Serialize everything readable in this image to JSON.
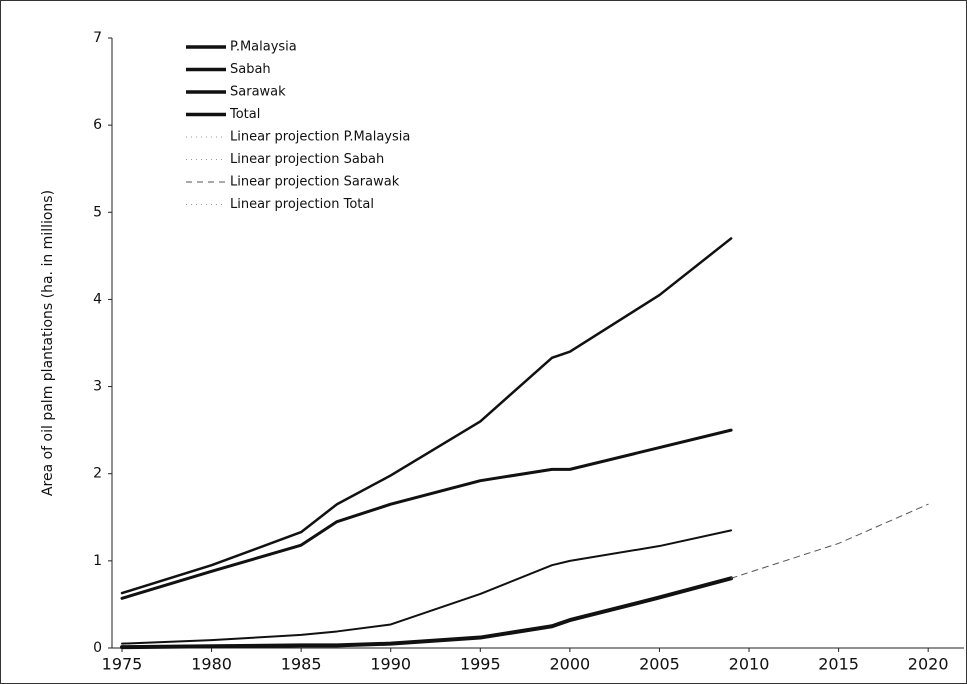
{
  "chart_data": {
    "type": "line",
    "y_label": "Area of oil palm plantations (ha. in millions)",
    "x": [
      1975,
      1980,
      1985,
      1987,
      1990,
      1995,
      1999,
      2000,
      2005,
      2009,
      2015,
      2020
    ],
    "series": [
      {
        "name": "P.Malaysia",
        "color": "#111111",
        "line_width": 3,
        "style": "solid",
        "values": [
          0.57,
          0.88,
          1.18,
          1.45,
          1.65,
          1.92,
          2.05,
          2.05,
          2.3,
          2.5,
          null,
          null
        ]
      },
      {
        "name": "Sabah",
        "color": "#111111",
        "line_width": 2,
        "style": "solid",
        "values": [
          0.05,
          0.09,
          0.15,
          0.19,
          0.27,
          0.62,
          0.95,
          1.0,
          1.17,
          1.35,
          null,
          null
        ]
      },
      {
        "name": "Sarawak",
        "color": "#111111",
        "line_width": 4,
        "style": "solid",
        "values": [
          0.01,
          0.02,
          0.03,
          0.03,
          0.05,
          0.12,
          0.25,
          0.32,
          0.58,
          0.8,
          null,
          null
        ]
      },
      {
        "name": "Total",
        "color": "#111111",
        "line_width": 2.5,
        "style": "solid",
        "values": [
          0.63,
          0.95,
          1.33,
          1.65,
          1.98,
          2.6,
          3.33,
          3.4,
          4.05,
          4.7,
          null,
          null
        ]
      },
      {
        "name": "Linear projection P.Malaysia",
        "color": "#999999",
        "line_width": 1,
        "style": "dotted",
        "values": [
          null,
          null,
          null,
          null,
          null,
          null,
          null,
          null,
          null,
          null,
          null,
          null
        ]
      },
      {
        "name": "Linear projection Sabah",
        "color": "#999999",
        "line_width": 1,
        "style": "dotted",
        "values": [
          null,
          null,
          null,
          null,
          null,
          null,
          null,
          null,
          null,
          null,
          null,
          null
        ]
      },
      {
        "name": "Linear projection Sarawak",
        "color": "#555555",
        "line_width": 1,
        "style": "dashed",
        "values": [
          null,
          null,
          null,
          null,
          null,
          null,
          null,
          null,
          null,
          0.8,
          1.2,
          1.65
        ]
      },
      {
        "name": "Linear projection Total",
        "color": "#999999",
        "line_width": 1,
        "style": "dotted",
        "values": [
          null,
          null,
          null,
          null,
          null,
          null,
          null,
          null,
          null,
          null,
          null,
          null
        ]
      }
    ],
    "xlim": [
      1975,
      2022
    ],
    "xticks": [
      1975,
      1980,
      1985,
      1990,
      1995,
      2000,
      2005,
      2010,
      2015,
      2020
    ],
    "ylim": [
      0,
      7
    ],
    "yticks": [
      0,
      1,
      2,
      3,
      4,
      5,
      6,
      7
    ],
    "grid": false,
    "legend": "upper left"
  }
}
